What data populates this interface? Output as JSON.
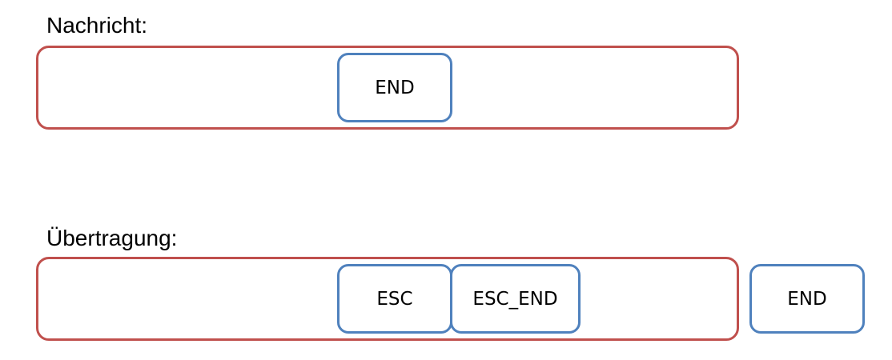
{
  "message": {
    "label": "Nachricht:",
    "bytes": [
      "END"
    ]
  },
  "transmission": {
    "label": "Übertragung:",
    "bytes": [
      "ESC",
      "ESC_END"
    ],
    "trailing_byte": "END"
  },
  "colors": {
    "frame_border": "#c0504d",
    "byte_border": "#4f81bd"
  }
}
